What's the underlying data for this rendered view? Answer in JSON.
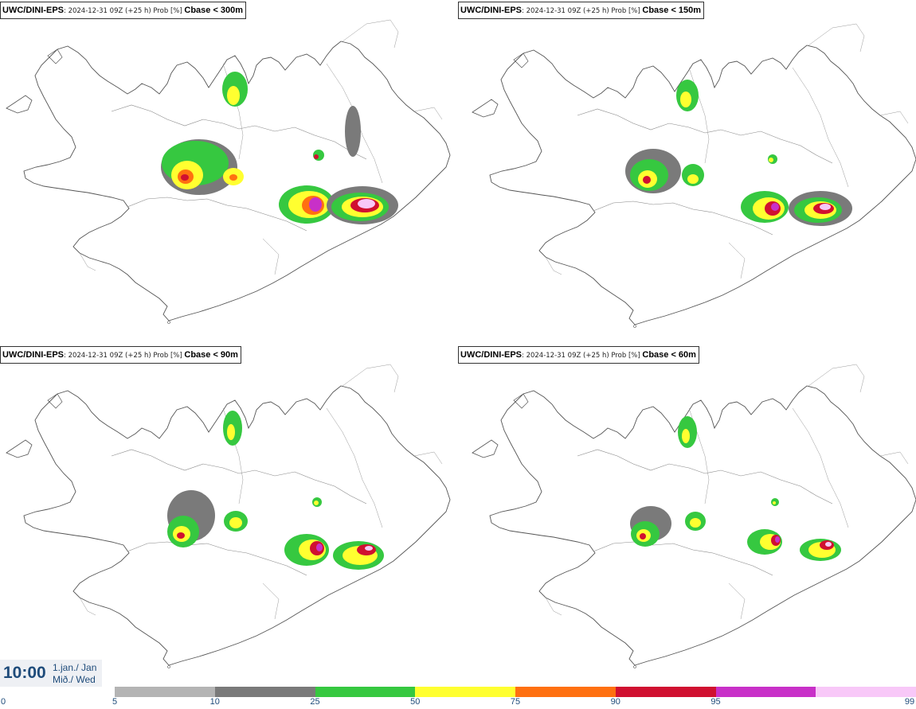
{
  "panels": [
    {
      "model": "UWC/DINI-EPS",
      "info": ": 2024-12-31 09Z (+25 h) Prob [%] ",
      "variable": "Cbase < 300m"
    },
    {
      "model": "UWC/DINI-EPS",
      "info": ": 2024-12-31 09Z (+25 h) Prob [%] ",
      "variable": "Cbase < 150m"
    },
    {
      "model": "UWC/DINI-EPS",
      "info": ": 2024-12-31 09Z (+25 h) Prob [%] ",
      "variable": "Cbase < 90m"
    },
    {
      "model": "UWC/DINI-EPS",
      "info": ": 2024-12-31 09Z (+25 h) Prob [%] ",
      "variable": "Cbase < 60m"
    }
  ],
  "time": {
    "clock": "10:00",
    "date_line1": "1.jan./ Jan",
    "date_line2": "Mið./ Wed"
  },
  "legend": {
    "ticks": [
      "0",
      "5",
      "10",
      "25",
      "50",
      "75",
      "90",
      "95",
      "99"
    ],
    "colors": [
      "#b4b4b4",
      "#7a7a7a",
      "#36c840",
      "#ffff30",
      "#ff7010",
      "#d01030",
      "#c830c8",
      "#f8c8f8"
    ]
  },
  "palette": {
    "grey_light": "#b4b4b4",
    "grey_dark": "#7a7a7a",
    "green": "#36c840",
    "yellow": "#ffff30",
    "orange": "#ff7010",
    "red": "#d01030",
    "magenta": "#c830c8",
    "pink": "#f8c8f8",
    "outline": "#555555"
  }
}
